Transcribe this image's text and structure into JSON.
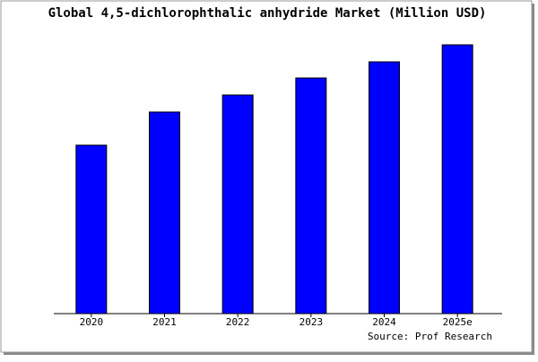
{
  "chart_data": {
    "type": "bar",
    "title": "Global 4,5-dichlorophthalic anhydride Market (Million USD)",
    "categories": [
      "2020",
      "2021",
      "2022",
      "2023",
      "2024",
      "2025e"
    ],
    "values": [
      18.8,
      22.5,
      24.4,
      26.3,
      28.1,
      30.0
    ],
    "color": "#0000ff",
    "ylim": [
      0,
      31
    ],
    "source": "Source: Prof Research"
  }
}
